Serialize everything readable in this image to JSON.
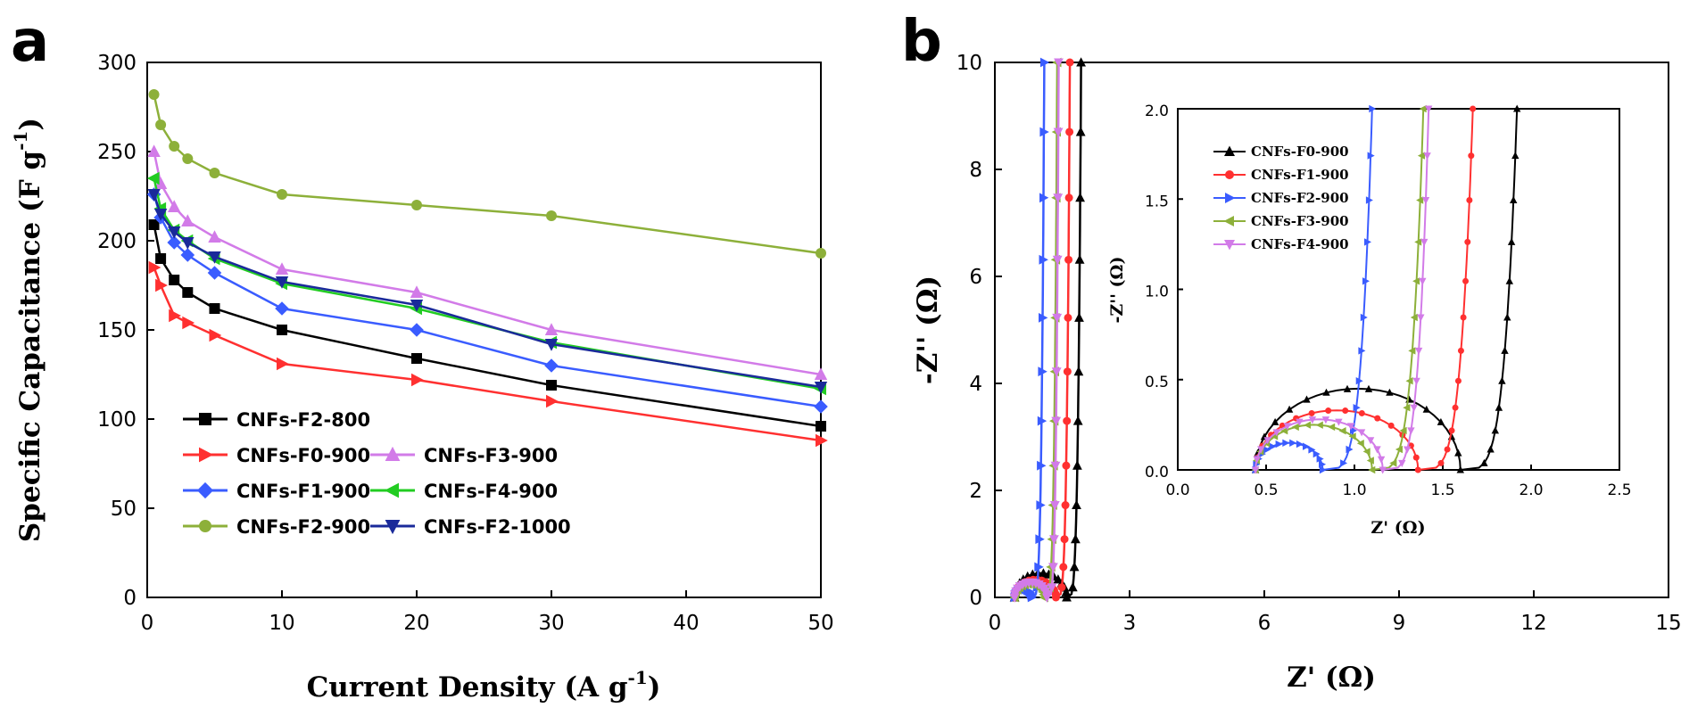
{
  "chart_data": [
    {
      "type": "line",
      "panel_label": "a",
      "xlabel": "Current Density (A g",
      "xlabel_sup": "-1",
      "xlabel_end": ")",
      "ylabel": "Specific Capacitance (F g",
      "ylabel_sup": "-1",
      "ylabel_end": ")",
      "xlim": [
        0,
        50
      ],
      "ylim": [
        0,
        300
      ],
      "xticks": [
        "0",
        "10",
        "20",
        "30",
        "40",
        "50"
      ],
      "yticks": [
        "0",
        "50",
        "100",
        "150",
        "200",
        "250",
        "300"
      ],
      "legend_position": "bottom-left",
      "x": [
        0.5,
        1,
        2,
        3,
        5,
        10,
        20,
        30,
        50
      ],
      "series": [
        {
          "name": "CNFs-F2-800",
          "color": "#000000",
          "marker": "square",
          "values": [
            209,
            190,
            178,
            171,
            162,
            150,
            134,
            119,
            96
          ]
        },
        {
          "name": "CNFs-F0-900",
          "color": "#ff3030",
          "marker": "triangle-right",
          "values": [
            185,
            175,
            158,
            154,
            147,
            131,
            122,
            110,
            88
          ]
        },
        {
          "name": "CNFs-F1-900",
          "color": "#3a5cff",
          "marker": "diamond",
          "values": [
            226,
            213,
            199,
            192,
            182,
            162,
            150,
            130,
            107
          ]
        },
        {
          "name": "CNFs-F2-900",
          "color": "#8db03a",
          "marker": "circle",
          "values": [
            282,
            265,
            253,
            246,
            238,
            226,
            220,
            214,
            193
          ]
        },
        {
          "name": "CNFs-F3-900",
          "color": "#d27be8",
          "marker": "triangle-up",
          "values": [
            250,
            232,
            219,
            211,
            202,
            184,
            171,
            150,
            125
          ]
        },
        {
          "name": "CNFs-F4-900",
          "color": "#22cc22",
          "marker": "triangle-left",
          "values": [
            235,
            218,
            206,
            200,
            190,
            176,
            162,
            143,
            117
          ]
        },
        {
          "name": "CNFs-F2-1000",
          "color": "#1a2a9a",
          "marker": "triangle-down",
          "values": [
            226,
            215,
            205,
            199,
            191,
            177,
            164,
            142,
            118
          ]
        }
      ]
    },
    {
      "type": "line",
      "panel_label": "b",
      "xlabel": "Z' (Ω)",
      "ylabel": "-Z'' (Ω)",
      "xlim": [
        0,
        15
      ],
      "ylim": [
        0,
        10
      ],
      "xticks": [
        "0",
        "3",
        "6",
        "9",
        "12",
        "15"
      ],
      "yticks": [
        "0",
        "2",
        "4",
        "6",
        "8",
        "10"
      ],
      "series": [
        {
          "name": "CNFs-F0-900",
          "color": "#000000",
          "marker": "triangle-up",
          "x_left": 0.44,
          "rs": 0.44,
          "knee": 1.6,
          "peak": 0.45,
          "tail_top": 1.92
        },
        {
          "name": "CNFs-F1-900",
          "color": "#ff3030",
          "marker": "circle",
          "x_left": 0.44,
          "rs": 0.44,
          "knee": 1.36,
          "peak": 0.33,
          "tail_top": 1.67
        },
        {
          "name": "CNFs-F2-900",
          "color": "#3a5cff",
          "marker": "triangle-right",
          "x_left": 0.44,
          "rs": 0.44,
          "knee": 0.82,
          "peak": 0.15,
          "tail_top": 1.1
        },
        {
          "name": "CNFs-F3-900",
          "color": "#8db03a",
          "marker": "triangle-left",
          "x_left": 0.44,
          "rs": 0.44,
          "knee": 1.1,
          "peak": 0.25,
          "tail_top": 1.39
        },
        {
          "name": "CNFs-F4-900",
          "color": "#d27be8",
          "marker": "triangle-down",
          "x_left": 0.44,
          "rs": 0.44,
          "knee": 1.16,
          "peak": 0.28,
          "tail_top": 1.42
        }
      ],
      "inset": {
        "xlabel": "Z' (Ω)",
        "ylabel": "-Z'' (Ω)",
        "xlim": [
          0,
          2.5
        ],
        "ylim": [
          0,
          2.0
        ],
        "xticks": [
          "0.0",
          "0.5",
          "1.0",
          "1.5",
          "2.0",
          "2.5"
        ],
        "yticks": [
          "0.0",
          "0.5",
          "1.0",
          "1.5",
          "2.0"
        ],
        "legend_position": "top-left"
      }
    }
  ]
}
